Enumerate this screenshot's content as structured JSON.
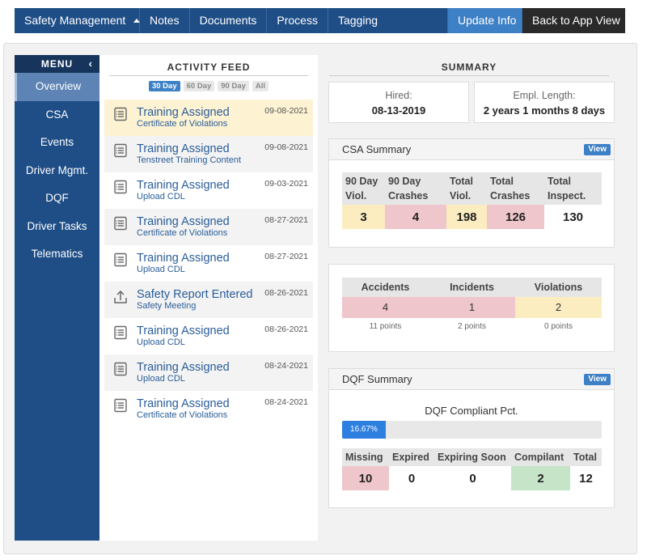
{
  "topnav": {
    "items": [
      "Safety Management",
      "Notes",
      "Documents",
      "Process",
      "Tagging"
    ],
    "update_label": "Update Info",
    "back_label": "Back to App View"
  },
  "sidebar": {
    "header": "MENU",
    "items": [
      "Overview",
      "CSA",
      "Events",
      "Driver Mgmt.",
      "DQF",
      "Driver Tasks",
      "Telematics"
    ]
  },
  "feed": {
    "title": "ACTIVITY FEED",
    "filters": [
      "30 Day",
      "60 Day",
      "90 Day",
      "All"
    ],
    "items": [
      {
        "title": "Training Assigned",
        "sub": "Certificate of Violations",
        "date": "09-08-2021",
        "icon": "checklist-icon"
      },
      {
        "title": "Training Assigned",
        "sub": "Tenstreet Training Content",
        "date": "09-08-2021",
        "icon": "checklist-icon"
      },
      {
        "title": "Training Assigned",
        "sub": "Upload CDL",
        "date": "09-03-2021",
        "icon": "checklist-icon"
      },
      {
        "title": "Training Assigned",
        "sub": "Certificate of Violations",
        "date": "08-27-2021",
        "icon": "checklist-icon"
      },
      {
        "title": "Training Assigned",
        "sub": "Upload CDL",
        "date": "08-27-2021",
        "icon": "checklist-icon"
      },
      {
        "title": "Safety Report Entered",
        "sub": "Safety Meeting",
        "date": "08-26-2021",
        "icon": "upload-icon"
      },
      {
        "title": "Training Assigned",
        "sub": "Upload CDL",
        "date": "08-26-2021",
        "icon": "checklist-icon"
      },
      {
        "title": "Training Assigned",
        "sub": "Upload CDL",
        "date": "08-24-2021",
        "icon": "checklist-icon"
      },
      {
        "title": "Training Assigned",
        "sub": "Certificate of Violations",
        "date": "08-24-2021",
        "icon": "checklist-icon"
      }
    ]
  },
  "summary": {
    "title": "SUMMARY",
    "hired_label": "Hired:",
    "hired_value": "08-13-2019",
    "length_label": "Empl. Length:",
    "length_value": "2 years 1 months 8 days"
  },
  "csa": {
    "title": "CSA Summary",
    "view_label": "View",
    "headers": [
      "90 Day Viol.",
      "90 Day Crashes",
      "Total Viol.",
      "Total Crashes",
      "Total Inspect."
    ],
    "values": [
      "3",
      "4",
      "198",
      "126",
      "130"
    ]
  },
  "counts": {
    "headers": [
      "Accidents",
      "Incidents",
      "Violations"
    ],
    "values": [
      "4",
      "1",
      "2"
    ],
    "points": [
      "11 points",
      "2 points",
      "0 points"
    ]
  },
  "dqf": {
    "title": "DQF Summary",
    "view_label": "View",
    "compliant_label": "DQF Compliant Pct.",
    "compliant_pct": "16.67%",
    "compliant_fraction": 0.1667,
    "headers": [
      "Missing",
      "Expired",
      "Expiring Soon",
      "Compilant",
      "Total"
    ],
    "values": [
      "10",
      "0",
      "0",
      "2",
      "12"
    ]
  },
  "colors": {
    "nav_blue": "#1f4e87",
    "accent": "#3d80c6",
    "yellow": "#fbedbf",
    "red": "#efc6cb",
    "green": "#c6e4c8"
  }
}
